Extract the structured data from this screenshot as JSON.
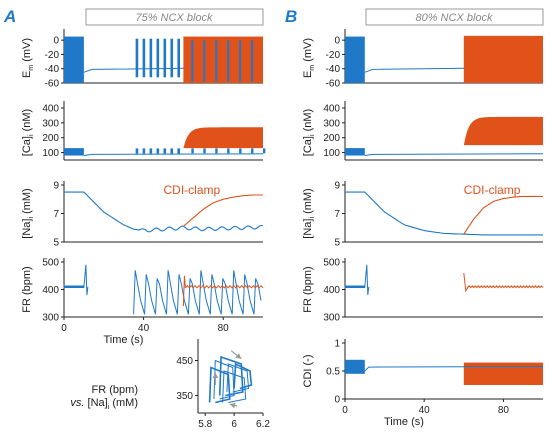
{
  "colors": {
    "blue": "#1f78c8",
    "orange": "#e0521a",
    "axis": "#222222",
    "box": "#999999"
  },
  "panels": {
    "A": {
      "letter": "A",
      "condition": "75% NCX block"
    },
    "B": {
      "letter": "B",
      "condition": "80% NCX block"
    }
  },
  "annotations": {
    "cdi_clamp": "CDI-clamp"
  },
  "chart_data": [
    {
      "id": "A-Em",
      "type": "line",
      "panel": "A",
      "ylabel": "E_m (mV)",
      "ylim": [
        -60,
        10
      ],
      "yticks": [
        "0",
        "-20",
        "-40",
        "-60"
      ],
      "xlim": [
        0,
        100
      ],
      "series": [
        {
          "color": "blue",
          "desc": "APs 0-10 s, quiescent ~-40 mV 10-35 s, 7 bursts 35-60 s"
        },
        {
          "color": "orange",
          "desc": "continuous firing 60-100 s, -60 to 5 mV"
        }
      ]
    },
    {
      "id": "A-Ca",
      "type": "line",
      "panel": "A",
      "ylabel": "[Ca]_i (nM)",
      "ylim": [
        50,
        420
      ],
      "yticks": [
        "100",
        "200",
        "300",
        "400"
      ],
      "xlim": [
        0,
        100
      ],
      "series": [
        {
          "color": "blue",
          "range": [
            80,
            130
          ]
        },
        {
          "color": "orange",
          "range": [
            130,
            270
          ],
          "x_start": 60
        }
      ]
    },
    {
      "id": "A-Na",
      "type": "line",
      "panel": "A",
      "ylabel": "[Na]_i (mM)",
      "ylim": [
        5,
        9
      ],
      "yticks": [
        "5",
        "7",
        "9"
      ],
      "xlim": [
        0,
        100
      ],
      "series": [
        {
          "color": "blue",
          "x": [
            0,
            10,
            20,
            30,
            35,
            40,
            50,
            60,
            70,
            80,
            90,
            100
          ],
          "y": [
            8.5,
            8.5,
            7.1,
            6.2,
            5.9,
            5.8,
            5.9,
            6.0,
            5.9,
            5.95,
            6.0,
            6.05
          ]
        },
        {
          "color": "orange",
          "x": [
            60,
            65,
            70,
            75,
            80,
            85,
            90,
            95,
            100
          ],
          "y": [
            6.1,
            6.7,
            7.3,
            7.75,
            8.0,
            8.15,
            8.25,
            8.3,
            8.3
          ]
        }
      ]
    },
    {
      "id": "A-FR",
      "type": "line",
      "panel": "A",
      "ylabel": "FR (bpm)",
      "xlabel": "Time (s)",
      "ylim": [
        300,
        500
      ],
      "yticks": [
        "300",
        "400",
        "500"
      ],
      "xticks": [
        "0",
        "40",
        "80"
      ],
      "xlim": [
        0,
        100
      ],
      "series": [
        {
          "color": "blue",
          "desc": "~410 bpm 0-10 s with spike to 490; bursts 35-100 s ranging 310-480"
        },
        {
          "color": "orange",
          "desc": "60-100 s, ~410 bpm with initial spike to 450"
        }
      ]
    },
    {
      "id": "A-phase",
      "type": "line",
      "panel": "A",
      "ylabel": "FR (bpm) vs. [Na]_i (mM)",
      "xlim": [
        5.75,
        6.2
      ],
      "ylim": [
        300,
        500
      ],
      "xticks": [
        "5.8",
        "6",
        "6.2"
      ],
      "yticks": [
        "350",
        "450"
      ],
      "series": [
        {
          "color": "blue",
          "desc": "FR vs [Na]_i limit cycles, 5.82-6.12 mM, 320-470 bpm"
        }
      ]
    },
    {
      "id": "B-Em",
      "type": "line",
      "panel": "B",
      "ylabel": "E_m (mV)",
      "ylim": [
        -60,
        10
      ],
      "yticks": [
        "0",
        "-20",
        "-40",
        "-60"
      ],
      "xlim": [
        0,
        100
      ],
      "series": [
        {
          "color": "blue",
          "desc": "APs 0-10 s then ~-38 mV"
        },
        {
          "color": "orange",
          "desc": "firing 60-100 s"
        }
      ]
    },
    {
      "id": "B-Ca",
      "type": "line",
      "panel": "B",
      "ylabel": "[Ca]_i (nM)",
      "ylim": [
        50,
        420
      ],
      "yticks": [
        "100",
        "200",
        "300",
        "400"
      ],
      "xlim": [
        0,
        100
      ],
      "series": [
        {
          "color": "blue",
          "range": [
            80,
            130
          ]
        },
        {
          "color": "orange",
          "range": [
            150,
            340
          ],
          "x_start": 60
        }
      ]
    },
    {
      "id": "B-Na",
      "type": "line",
      "panel": "B",
      "ylabel": "[Na]_i (mM)",
      "ylim": [
        5,
        9
      ],
      "yticks": [
        "5",
        "7",
        "9"
      ],
      "xlim": [
        0,
        100
      ],
      "series": [
        {
          "color": "blue",
          "x": [
            0,
            10,
            20,
            30,
            40,
            50,
            60,
            70,
            80,
            90,
            100
          ],
          "y": [
            8.5,
            8.5,
            7.1,
            6.2,
            5.8,
            5.6,
            5.55,
            5.5,
            5.5,
            5.5,
            5.5
          ]
        },
        {
          "color": "orange",
          "x": [
            60,
            65,
            70,
            75,
            80,
            85,
            90,
            100
          ],
          "y": [
            5.55,
            6.6,
            7.4,
            7.85,
            8.05,
            8.15,
            8.2,
            8.2
          ]
        }
      ]
    },
    {
      "id": "B-FR",
      "type": "line",
      "panel": "B",
      "ylabel": "FR (bpm)",
      "ylim": [
        300,
        500
      ],
      "yticks": [
        "300",
        "400",
        "500"
      ],
      "xlim": [
        0,
        100
      ],
      "series": [
        {
          "color": "blue",
          "desc": "~410 bpm 0-10 s, spike to 490"
        },
        {
          "color": "orange",
          "desc": "60-100 s ~410 bpm, spike to 460 at 60 s"
        }
      ]
    },
    {
      "id": "B-CDI",
      "type": "line",
      "panel": "B",
      "ylabel": "CDI (-)",
      "xlabel": "Time (s)",
      "ylim": [
        0,
        1
      ],
      "yticks": [
        "0",
        "0.5",
        "1"
      ],
      "xticks": [
        "0",
        "40",
        "80"
      ],
      "xlim": [
        0,
        100
      ],
      "series": [
        {
          "color": "blue",
          "desc": "0.45-0.7 oscillation 0-10 s, then 0.58"
        },
        {
          "color": "orange",
          "desc": "60-100 s oscillating 0.25-0.65"
        }
      ]
    }
  ]
}
